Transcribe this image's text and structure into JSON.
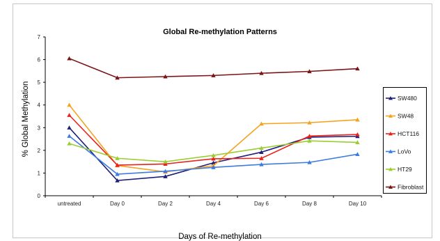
{
  "chart_data": {
    "type": "line",
    "title": "Global Re-methylation Patterns",
    "xlabel": "Days of Re-methylation",
    "ylabel": "% Global Methylation",
    "categories": [
      "untreated",
      "Day 0",
      "Day 2",
      "Day 4",
      "Day 6",
      "Day 8",
      "Day 10"
    ],
    "ylim": [
      0,
      7
    ],
    "yticks": [
      "0",
      "1",
      "2",
      "3",
      "4",
      "5",
      "6",
      "7"
    ],
    "grid": false,
    "legend_position": "right",
    "series": [
      {
        "name": "SW480",
        "color": "#1f1f7a",
        "marker": "triangle",
        "values": [
          3.0,
          0.67,
          0.85,
          1.45,
          1.92,
          2.58,
          2.62
        ]
      },
      {
        "name": "SW48",
        "color": "#f5a21f",
        "marker": "triangle",
        "values": [
          4.0,
          1.33,
          1.05,
          1.32,
          3.17,
          3.22,
          3.35
        ]
      },
      {
        "name": "HCT116",
        "color": "#e8231c",
        "marker": "triangle",
        "values": [
          3.55,
          1.35,
          1.4,
          1.63,
          1.65,
          2.63,
          2.7
        ]
      },
      {
        "name": "LoVo",
        "color": "#3d7be0",
        "marker": "triangle",
        "values": [
          2.63,
          0.95,
          1.08,
          1.25,
          1.38,
          1.47,
          1.83
        ]
      },
      {
        "name": "HT29",
        "color": "#9acd32",
        "marker": "triangle",
        "values": [
          2.3,
          1.65,
          1.5,
          1.78,
          2.1,
          2.42,
          2.35
        ]
      },
      {
        "name": "Fibroblast",
        "color": "#7a1414",
        "marker": "triangle",
        "values": [
          6.05,
          5.2,
          5.25,
          5.3,
          5.4,
          5.48,
          5.6
        ]
      }
    ]
  }
}
